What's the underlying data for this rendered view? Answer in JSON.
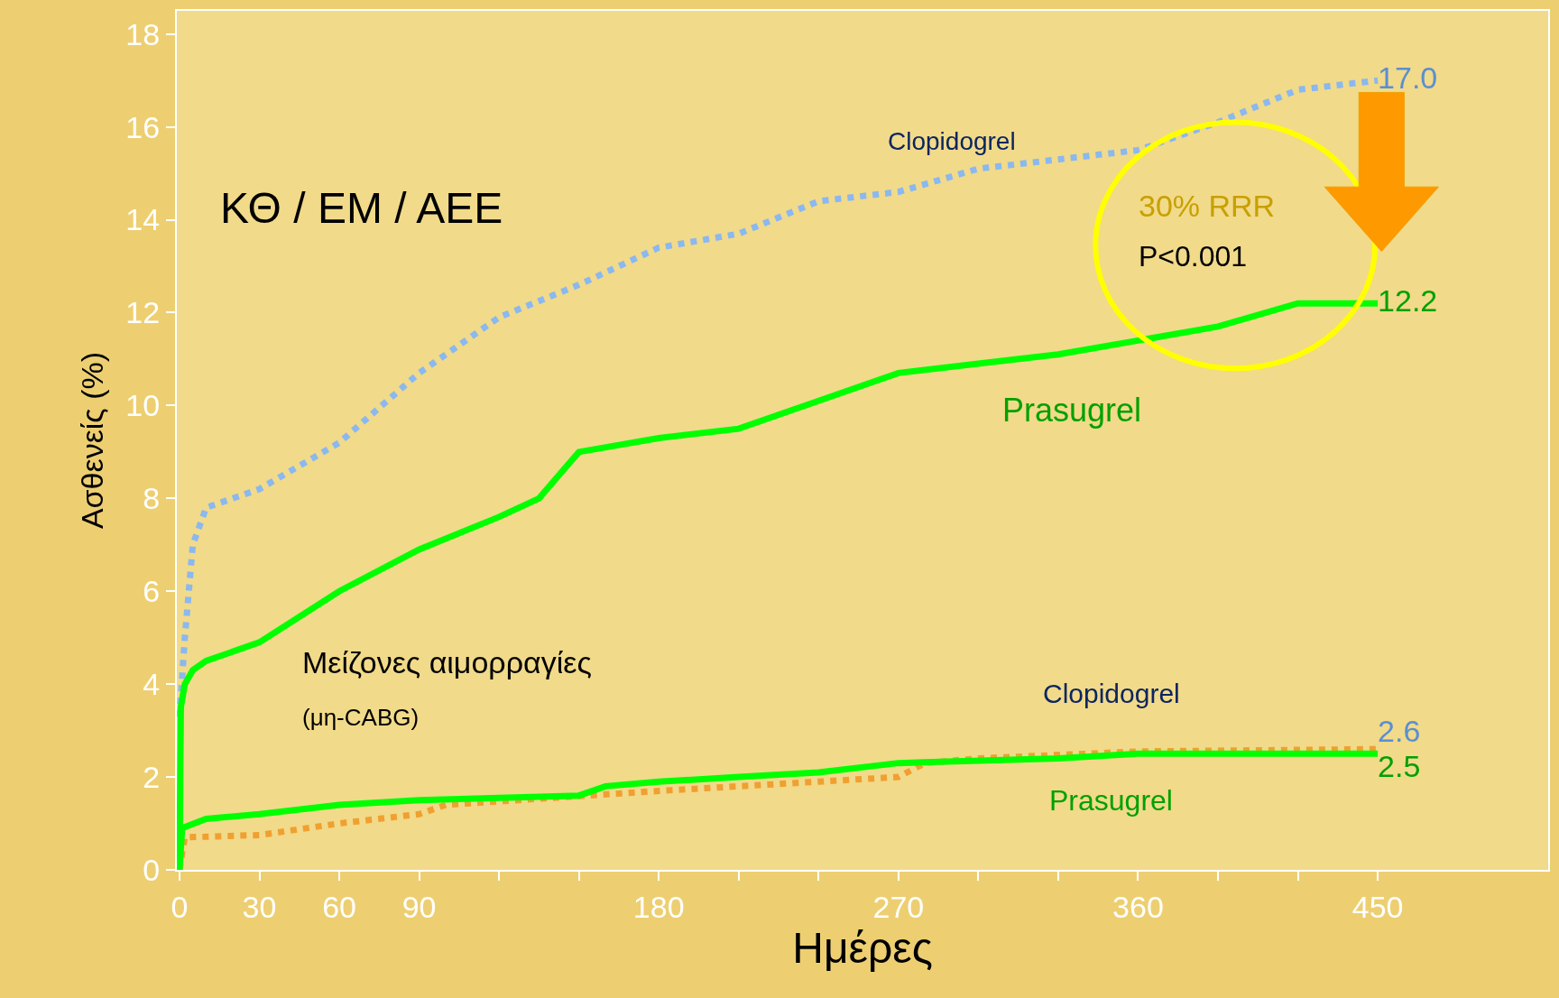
{
  "chart_data": {
    "type": "line",
    "xlabel": "Ημέρες",
    "ylabel": "Ασθενείς (%)",
    "xlim": [
      -1,
      514
    ],
    "ylim": [
      0,
      18.5
    ],
    "xticks": [
      0,
      30,
      60,
      90,
      {
        "value": 120,
        "label": null
      },
      {
        "value": 150,
        "label": null
      },
      180,
      {
        "value": 210,
        "label": null
      },
      {
        "value": 240,
        "label": null
      },
      270,
      {
        "value": 300,
        "label": null
      },
      {
        "value": 330,
        "label": null
      },
      360,
      {
        "value": 390,
        "label": null
      },
      {
        "value": 420,
        "label": null
      },
      450
    ],
    "yticks": [
      0,
      2,
      4,
      6,
      8,
      10,
      12,
      14,
      16,
      18
    ],
    "grid": false,
    "legend": false,
    "marker": "none",
    "annotations": [
      "ΚΘ / ΕΜ / ΑΕΕ",
      "30% RRR",
      "P<0.001",
      "Μείζονες αιμορραγίες",
      "(μη-CABG)"
    ],
    "series": [
      {
        "name": "Clopidogrel",
        "color": "#8ab8f0",
        "line_style": "dotted",
        "x": [
          0,
          2,
          5,
          10,
          30,
          60,
          90,
          120,
          150,
          180,
          210,
          240,
          270,
          300,
          330,
          360,
          390,
          420,
          450
        ],
        "values": [
          3.3,
          5.0,
          7.0,
          7.8,
          8.2,
          9.2,
          10.7,
          11.9,
          12.6,
          13.4,
          13.7,
          14.4,
          14.6,
          15.1,
          15.3,
          15.5,
          16.1,
          16.8,
          17.0
        ],
        "value_labels": [
          null,
          null,
          null,
          null,
          null,
          null,
          null,
          null,
          null,
          null,
          null,
          null,
          null,
          null,
          null,
          null,
          null,
          null,
          "17.0"
        ]
      },
      {
        "name": "Prasugrel",
        "color": "#00ff00",
        "line_style": "solid",
        "x": [
          0,
          0.5,
          2,
          5,
          10,
          30,
          60,
          90,
          120,
          135,
          150,
          180,
          210,
          240,
          270,
          300,
          330,
          360,
          390,
          420,
          450
        ],
        "values": [
          0,
          3.5,
          4.0,
          4.3,
          4.5,
          4.9,
          6.0,
          6.9,
          7.6,
          8.0,
          9.0,
          9.3,
          9.5,
          10.1,
          10.7,
          10.9,
          11.1,
          11.4,
          11.7,
          12.2,
          12.2
        ],
        "value_labels": [
          null,
          null,
          null,
          null,
          null,
          null,
          null,
          null,
          null,
          null,
          null,
          null,
          null,
          null,
          null,
          null,
          null,
          null,
          null,
          null,
          "12.2"
        ]
      },
      {
        "name": "Clopidogrel",
        "color": "#f0a030",
        "line_style": "dotted",
        "x": [
          0,
          2,
          30,
          60,
          90,
          100,
          180,
          270,
          280,
          300,
          360,
          450
        ],
        "values": [
          0,
          0.7,
          0.75,
          1.0,
          1.2,
          1.4,
          1.7,
          2.0,
          2.3,
          2.4,
          2.55,
          2.6
        ],
        "value_labels": [
          null,
          null,
          null,
          null,
          null,
          null,
          null,
          null,
          null,
          null,
          null,
          "2.6"
        ]
      },
      {
        "name": "Prasugrel",
        "color": "#00ff00",
        "line_style": "solid",
        "x": [
          0,
          1,
          10,
          30,
          60,
          90,
          150,
          160,
          180,
          210,
          240,
          270,
          330,
          360,
          450
        ],
        "values": [
          0,
          0.9,
          1.1,
          1.2,
          1.4,
          1.5,
          1.6,
          1.8,
          1.9,
          2.0,
          2.1,
          2.3,
          2.4,
          2.5,
          2.5
        ],
        "value_labels": [
          null,
          null,
          null,
          null,
          null,
          null,
          null,
          null,
          null,
          null,
          null,
          null,
          null,
          null,
          "2.5"
        ]
      }
    ]
  }
}
